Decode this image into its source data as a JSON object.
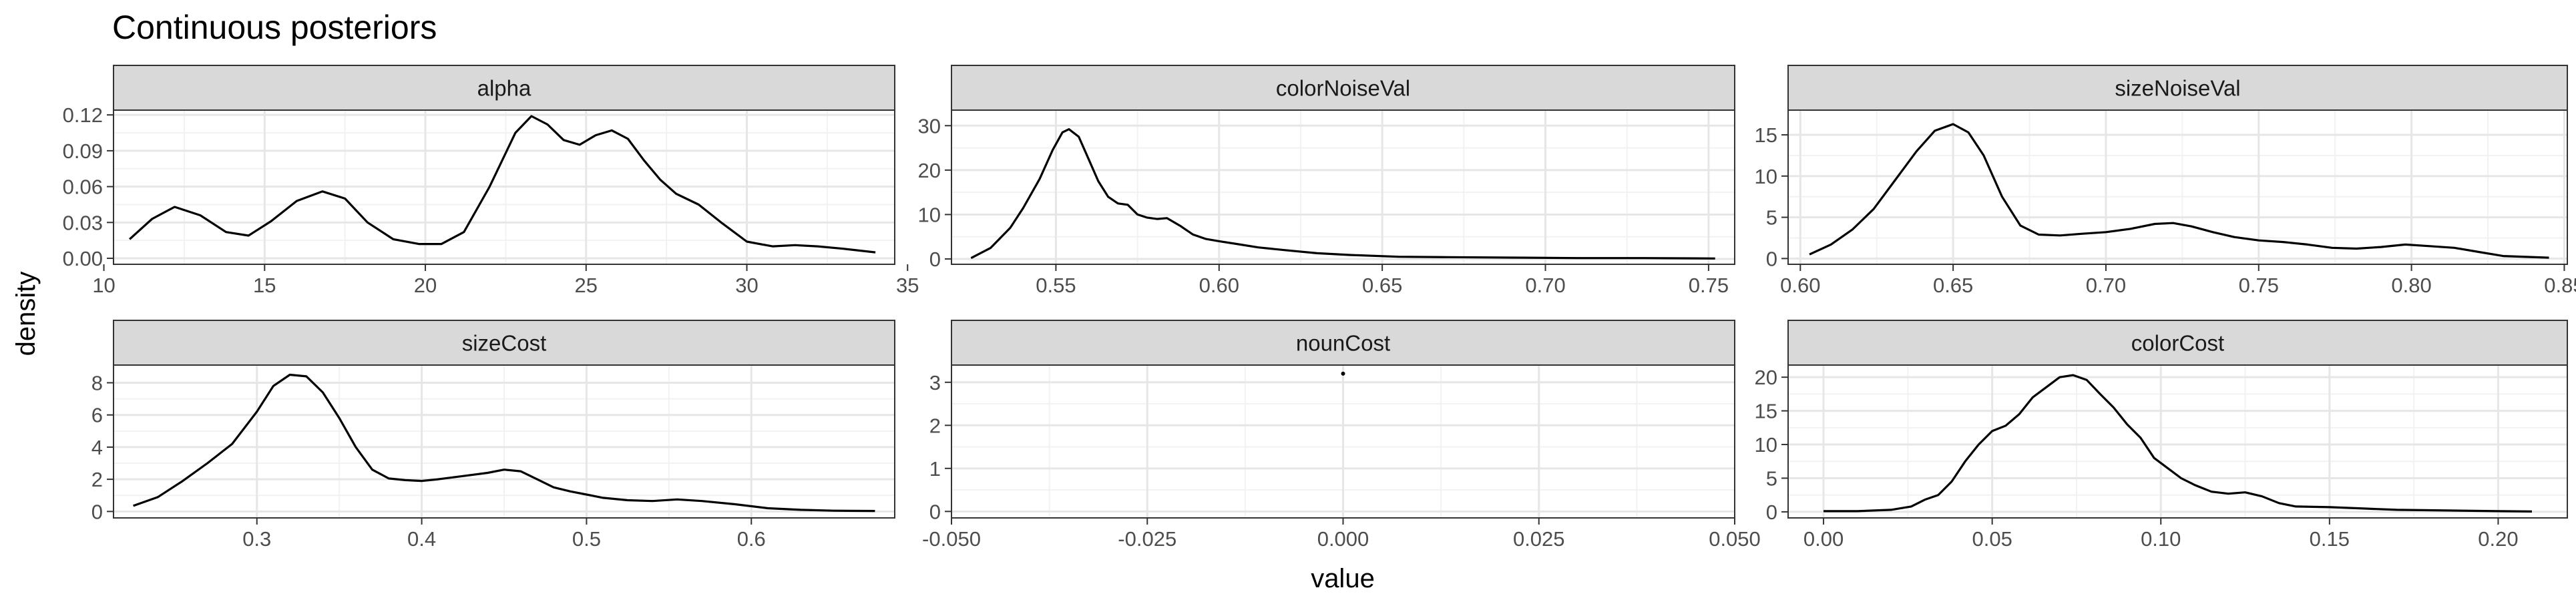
{
  "chart_data": {
    "type": "line",
    "title": "Continuous posteriors",
    "xlabel": "value",
    "ylabel": "density",
    "theme": "bw",
    "grid": true,
    "line_color": "#000000",
    "strip_color": "#d9d9d9",
    "panels": [
      {
        "name": "alpha",
        "xlim": [
          10.3,
          34.6
        ],
        "ylim": [
          -0.005,
          0.124
        ],
        "xticks": [
          {
            "v": 10,
            "label": "10"
          },
          {
            "v": 15,
            "label": "15"
          },
          {
            "v": 20,
            "label": "20"
          },
          {
            "v": 25,
            "label": "25"
          },
          {
            "v": 30,
            "label": "30"
          },
          {
            "v": 35,
            "label": "35"
          }
        ],
        "yticks": [
          {
            "v": 0.0,
            "label": "0.00"
          },
          {
            "v": 0.03,
            "label": "0.03"
          },
          {
            "v": 0.06,
            "label": "0.06"
          },
          {
            "v": 0.09,
            "label": "0.09"
          },
          {
            "v": 0.12,
            "label": "0.12"
          }
        ],
        "x": [
          10.8,
          11.5,
          12.2,
          13.0,
          13.8,
          14.5,
          15.2,
          16.0,
          16.8,
          17.5,
          18.2,
          19.0,
          19.8,
          20.5,
          21.2,
          22.0,
          22.8,
          23.3,
          23.8,
          24.3,
          24.8,
          25.3,
          25.8,
          26.3,
          26.8,
          27.3,
          27.8,
          28.5,
          29.2,
          30.0,
          30.8,
          31.5,
          32.2,
          33.0,
          34.0
        ],
        "y": [
          0.016,
          0.033,
          0.043,
          0.036,
          0.022,
          0.019,
          0.031,
          0.048,
          0.056,
          0.05,
          0.03,
          0.016,
          0.012,
          0.012,
          0.022,
          0.06,
          0.105,
          0.119,
          0.112,
          0.099,
          0.095,
          0.103,
          0.107,
          0.1,
          0.082,
          0.066,
          0.054,
          0.045,
          0.03,
          0.014,
          0.01,
          0.011,
          0.01,
          0.008,
          0.005
        ]
      },
      {
        "name": "colorNoiseVal",
        "xlim": [
          0.518,
          0.758
        ],
        "ylim": [
          -1.2,
          33.5
        ],
        "xticks": [
          {
            "v": 0.55,
            "label": "0.55"
          },
          {
            "v": 0.6,
            "label": "0.60"
          },
          {
            "v": 0.65,
            "label": "0.65"
          },
          {
            "v": 0.7,
            "label": "0.70"
          },
          {
            "v": 0.75,
            "label": "0.75"
          }
        ],
        "yticks": [
          {
            "v": 0,
            "label": "0"
          },
          {
            "v": 10,
            "label": "10"
          },
          {
            "v": 20,
            "label": "20"
          },
          {
            "v": 30,
            "label": "30"
          }
        ],
        "x": [
          0.524,
          0.53,
          0.536,
          0.54,
          0.545,
          0.549,
          0.552,
          0.554,
          0.557,
          0.56,
          0.563,
          0.566,
          0.569,
          0.572,
          0.575,
          0.578,
          0.581,
          0.584,
          0.588,
          0.592,
          0.596,
          0.6,
          0.606,
          0.612,
          0.62,
          0.63,
          0.64,
          0.655,
          0.67,
          0.69,
          0.71,
          0.73,
          0.752
        ],
        "y": [
          0.2,
          2.5,
          7.0,
          11.5,
          18.0,
          24.5,
          28.5,
          29.2,
          27.5,
          22.5,
          17.5,
          14.0,
          12.5,
          12.2,
          10.0,
          9.3,
          9.0,
          9.2,
          7.5,
          5.5,
          4.5,
          4.0,
          3.3,
          2.6,
          2.0,
          1.3,
          0.9,
          0.5,
          0.4,
          0.3,
          0.2,
          0.2,
          0.1
        ]
      },
      {
        "name": "sizeNoiseVal",
        "xlim": [
          0.596,
          0.851
        ],
        "ylim": [
          -0.7,
          18.0
        ],
        "xticks": [
          {
            "v": 0.6,
            "label": "0.60"
          },
          {
            "v": 0.65,
            "label": "0.65"
          },
          {
            "v": 0.7,
            "label": "0.70"
          },
          {
            "v": 0.75,
            "label": "0.75"
          },
          {
            "v": 0.8,
            "label": "0.80"
          },
          {
            "v": 0.85,
            "label": "0.85"
          }
        ],
        "yticks": [
          {
            "v": 0,
            "label": "0"
          },
          {
            "v": 5,
            "label": "5"
          },
          {
            "v": 10,
            "label": "10"
          },
          {
            "v": 15,
            "label": "15"
          }
        ],
        "x": [
          0.603,
          0.61,
          0.617,
          0.624,
          0.631,
          0.638,
          0.644,
          0.65,
          0.655,
          0.66,
          0.666,
          0.672,
          0.678,
          0.685,
          0.692,
          0.7,
          0.708,
          0.716,
          0.722,
          0.728,
          0.735,
          0.742,
          0.75,
          0.758,
          0.766,
          0.774,
          0.782,
          0.79,
          0.798,
          0.806,
          0.814,
          0.822,
          0.83,
          0.845
        ],
        "y": [
          0.5,
          1.7,
          3.5,
          6.0,
          9.5,
          13.0,
          15.5,
          16.3,
          15.3,
          12.5,
          7.5,
          4.0,
          2.9,
          2.8,
          3.0,
          3.2,
          3.6,
          4.2,
          4.3,
          3.9,
          3.2,
          2.6,
          2.2,
          2.0,
          1.7,
          1.3,
          1.2,
          1.4,
          1.7,
          1.5,
          1.3,
          0.8,
          0.3,
          0.1
        ]
      },
      {
        "name": "sizeCost",
        "xlim": [
          0.213,
          0.687
        ],
        "ylim": [
          -0.4,
          9.1
        ],
        "xticks": [
          {
            "v": 0.3,
            "label": "0.3"
          },
          {
            "v": 0.4,
            "label": "0.4"
          },
          {
            "v": 0.5,
            "label": "0.5"
          },
          {
            "v": 0.6,
            "label": "0.6"
          }
        ],
        "yticks": [
          {
            "v": 0,
            "label": "0"
          },
          {
            "v": 2,
            "label": "2"
          },
          {
            "v": 4,
            "label": "4"
          },
          {
            "v": 6,
            "label": "6"
          },
          {
            "v": 8,
            "label": "8"
          }
        ],
        "x": [
          0.225,
          0.24,
          0.255,
          0.27,
          0.285,
          0.3,
          0.31,
          0.32,
          0.33,
          0.34,
          0.35,
          0.36,
          0.37,
          0.38,
          0.39,
          0.4,
          0.41,
          0.425,
          0.44,
          0.45,
          0.46,
          0.47,
          0.48,
          0.49,
          0.5,
          0.51,
          0.525,
          0.54,
          0.555,
          0.57,
          0.59,
          0.61,
          0.63,
          0.65,
          0.675
        ],
        "y": [
          0.35,
          0.9,
          1.9,
          3.0,
          4.2,
          6.2,
          7.8,
          8.5,
          8.4,
          7.4,
          5.8,
          4.0,
          2.6,
          2.05,
          1.95,
          1.9,
          2.0,
          2.2,
          2.4,
          2.6,
          2.5,
          2.0,
          1.5,
          1.25,
          1.05,
          0.85,
          0.7,
          0.65,
          0.75,
          0.65,
          0.45,
          0.2,
          0.1,
          0.05,
          0.03
        ]
      },
      {
        "name": "nounCost",
        "xlim": [
          -0.05,
          0.05
        ],
        "ylim": [
          -0.15,
          3.4
        ],
        "xticks": [
          {
            "v": -0.05,
            "label": "-0.050"
          },
          {
            "v": -0.025,
            "label": "-0.025"
          },
          {
            "v": 0.0,
            "label": "0.000"
          },
          {
            "v": 0.025,
            "label": "0.025"
          },
          {
            "v": 0.05,
            "label": "0.050"
          }
        ],
        "yticks": [
          {
            "v": 0,
            "label": "0"
          },
          {
            "v": 1,
            "label": "1"
          },
          {
            "v": 2,
            "label": "2"
          },
          {
            "v": 3,
            "label": "3"
          }
        ],
        "x": [
          0.0
        ],
        "y": [
          3.2
        ],
        "point_only": true
      },
      {
        "name": "colorCost",
        "xlim": [
          -0.0105,
          0.2205
        ],
        "ylim": [
          -0.9,
          21.8
        ],
        "xticks": [
          {
            "v": 0.0,
            "label": "0.00"
          },
          {
            "v": 0.05,
            "label": "0.05"
          },
          {
            "v": 0.1,
            "label": "0.10"
          },
          {
            "v": 0.15,
            "label": "0.15"
          },
          {
            "v": 0.2,
            "label": "0.20"
          }
        ],
        "yticks": [
          {
            "v": 0,
            "label": "0"
          },
          {
            "v": 5,
            "label": "5"
          },
          {
            "v": 10,
            "label": "10"
          },
          {
            "v": 15,
            "label": "15"
          },
          {
            "v": 20,
            "label": "20"
          }
        ],
        "x": [
          0.0,
          0.01,
          0.02,
          0.026,
          0.03,
          0.034,
          0.038,
          0.042,
          0.046,
          0.05,
          0.054,
          0.058,
          0.062,
          0.066,
          0.07,
          0.074,
          0.078,
          0.082,
          0.086,
          0.09,
          0.094,
          0.098,
          0.102,
          0.106,
          0.11,
          0.115,
          0.12,
          0.125,
          0.13,
          0.135,
          0.14,
          0.15,
          0.16,
          0.17,
          0.185,
          0.2,
          0.21
        ],
        "y": [
          0.1,
          0.1,
          0.3,
          0.8,
          1.8,
          2.5,
          4.5,
          7.5,
          10.0,
          12.0,
          12.8,
          14.5,
          17.0,
          18.5,
          20.0,
          20.3,
          19.6,
          17.5,
          15.5,
          13.0,
          11.0,
          8.0,
          6.5,
          5.0,
          4.0,
          3.0,
          2.7,
          2.9,
          2.3,
          1.3,
          0.8,
          0.7,
          0.5,
          0.3,
          0.2,
          0.1,
          0.05
        ]
      }
    ]
  }
}
